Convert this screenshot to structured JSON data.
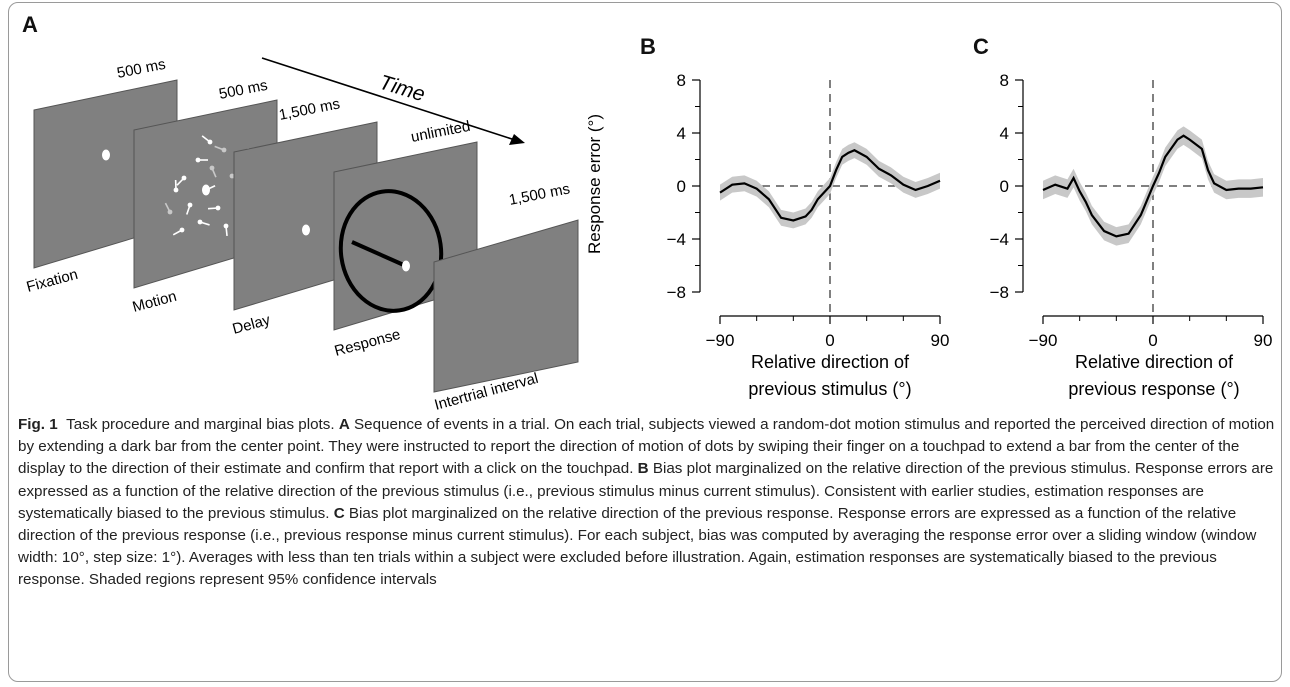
{
  "panels": {
    "A": {
      "letter": "A",
      "time_label": "Time",
      "screens": [
        {
          "name": "Fixation",
          "duration": "500 ms"
        },
        {
          "name": "Motion",
          "duration": "500 ms"
        },
        {
          "name": "Delay",
          "duration": "1,500 ms"
        },
        {
          "name": "Response",
          "duration": "unlimited"
        },
        {
          "name": "Intertrial interval",
          "duration": "1,500 ms"
        }
      ]
    },
    "B": {
      "letter": "B"
    },
    "C": {
      "letter": "C"
    }
  },
  "chart_data": [
    {
      "type": "line",
      "panel": "B",
      "ylabel": "Response error (°)",
      "xlabel_line1": "Relative direction of",
      "xlabel_line2": "previous stimulus (°)",
      "xlim": [
        -90,
        90
      ],
      "ylim": [
        -8,
        8
      ],
      "xticks": [
        -90,
        0,
        90
      ],
      "xtick_labels": [
        "−90",
        "0",
        "90"
      ],
      "yticks": [
        -8,
        -4,
        0,
        4,
        8
      ],
      "ytick_labels": [
        "−8",
        "−4",
        "0",
        "4",
        "8"
      ],
      "x": [
        -90,
        -80,
        -70,
        -60,
        -50,
        -40,
        -30,
        -20,
        -15,
        -10,
        0,
        5,
        10,
        15,
        20,
        30,
        40,
        50,
        60,
        70,
        80,
        90
      ],
      "y": [
        -0.5,
        0.1,
        0.2,
        -0.2,
        -1.0,
        -2.4,
        -2.6,
        -2.3,
        -1.8,
        -1.0,
        0.0,
        1.2,
        2.2,
        2.5,
        2.7,
        2.2,
        1.3,
        0.8,
        0.1,
        -0.3,
        0.0,
        0.4
      ],
      "ci_halfwidth": 0.6,
      "ref_lines": {
        "x": 0,
        "y": 0
      }
    },
    {
      "type": "line",
      "panel": "C",
      "ylabel": "",
      "xlabel_line1": "Relative direction of",
      "xlabel_line2": "previous response (°)",
      "xlim": [
        -90,
        90
      ],
      "ylim": [
        -8,
        8
      ],
      "xticks": [
        -90,
        0,
        90
      ],
      "xtick_labels": [
        "−90",
        "0",
        "90"
      ],
      "yticks": [
        -8,
        -4,
        0,
        4,
        8
      ],
      "ytick_labels": [
        "−8",
        "−4",
        "0",
        "4",
        "8"
      ],
      "x": [
        -90,
        -80,
        -70,
        -65,
        -60,
        -55,
        -50,
        -40,
        -30,
        -20,
        -10,
        0,
        5,
        10,
        20,
        25,
        30,
        40,
        45,
        50,
        60,
        70,
        80,
        90
      ],
      "y": [
        -0.3,
        0.1,
        -0.2,
        0.6,
        -0.4,
        -1.2,
        -2.2,
        -3.4,
        -3.8,
        -3.6,
        -2.2,
        0.0,
        1.0,
        2.2,
        3.5,
        3.8,
        3.5,
        2.8,
        1.2,
        0.2,
        -0.3,
        -0.2,
        -0.2,
        -0.1
      ],
      "ci_halfwidth": 0.7,
      "ref_lines": {
        "x": 0,
        "y": 0
      }
    }
  ],
  "caption": {
    "fig_label": "Fig. 1",
    "title": "Task procedure and marginal bias plots.",
    "A_letter": "A",
    "A_text": "Sequence of events in a trial. On each trial, subjects viewed a random-dot motion stimulus and reported the perceived direction of motion by extending a dark bar from the center point. They were instructed to report the direction of motion of dots by swiping their finger on a touchpad to extend a bar from the center of the display to the direction of their estimate and confirm that report with a click on the touchpad.",
    "B_letter": "B",
    "B_text": "Bias plot marginalized on the relative direction of the previous stimulus. Response errors are expressed as a function of the relative direction of the previous stimulus (i.e., previous stimulus minus current stimulus). Consistent with earlier studies, estimation responses are systematically biased to the previous stimulus.",
    "C_letter": "C",
    "C_text": "Bias plot marginalized on the relative direction of the previous response. Response errors are expressed as a function of the relative direction of the previous response (i.e., previous response minus current stimulus). For each subject, bias was computed by averaging the response error over a sliding window (window width: 10°, step size: 1°). Averages with less than ten trials within a subject were excluded before illustration. Again, estimation responses are systematically biased to the previous response. Shaded regions represent 95% confidence intervals"
  }
}
